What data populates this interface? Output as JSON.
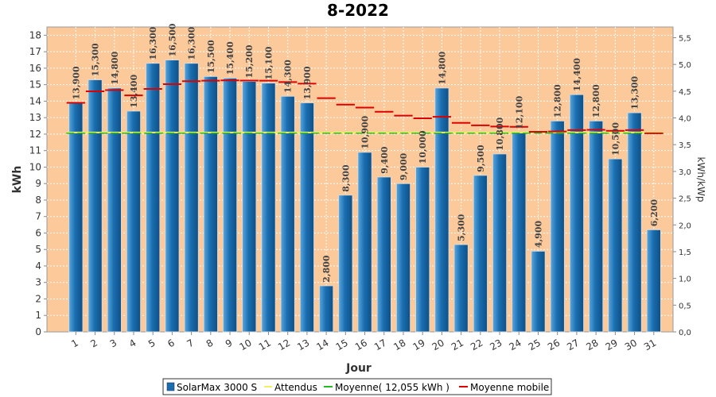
{
  "chart_data": {
    "type": "bar",
    "title": "8-2022",
    "xlabel": "Jour",
    "ylabel": "kWh",
    "y2label": "kWh/kWp",
    "ylim": [
      0,
      18.5
    ],
    "y2lim": [
      0,
      5.7
    ],
    "yticks": [
      "0",
      "1",
      "2",
      "3",
      "4",
      "5",
      "6",
      "7",
      "8",
      "9",
      "10",
      "11",
      "12",
      "13",
      "14",
      "15",
      "16",
      "17",
      "18"
    ],
    "y2ticks": [
      "0,0",
      "0,5",
      "1,0",
      "1,5",
      "2,0",
      "2,5",
      "3,0",
      "3,5",
      "4,0",
      "4,5",
      "5,0",
      "5,5"
    ],
    "categories": [
      "1",
      "2",
      "3",
      "4",
      "5",
      "6",
      "7",
      "8",
      "9",
      "10",
      "11",
      "12",
      "13",
      "14",
      "15",
      "16",
      "17",
      "18",
      "19",
      "20",
      "21",
      "22",
      "23",
      "24",
      "25",
      "26",
      "27",
      "28",
      "29",
      "30",
      "31"
    ],
    "series": [
      {
        "name": "SolarMax 3000 S",
        "values": [
          13.9,
          15.3,
          14.8,
          13.4,
          16.3,
          16.5,
          16.3,
          15.5,
          15.4,
          15.2,
          15.1,
          14.3,
          13.9,
          2.8,
          8.3,
          10.9,
          9.4,
          9.0,
          10.0,
          14.8,
          5.3,
          9.5,
          10.8,
          12.1,
          4.9,
          12.8,
          14.4,
          12.8,
          10.5,
          13.3,
          6.2
        ],
        "labels": [
          "13,900",
          "15,300",
          "14,800",
          "13,400",
          "16,300",
          "16,500",
          "16,300",
          "15,500",
          "15,400",
          "15,200",
          "15,100",
          "14,300",
          "13,900",
          "2,800",
          "8,300",
          "10,900",
          "9,400",
          "9,000",
          "10,000",
          "14,800",
          "5,300",
          "9,500",
          "10,800",
          "12,100",
          "4,900",
          "12,800",
          "14,400",
          "12,800",
          "10,500",
          "13,300",
          "6,200"
        ],
        "color": "#1a6eb0"
      },
      {
        "name": "Attendus",
        "values": [
          12.1,
          12.1,
          12.1,
          12.1,
          12.1,
          12.1,
          12.1,
          12.1,
          12.1,
          12.1,
          12.1,
          12.1,
          12.1,
          12.1,
          12.1,
          12.1,
          12.1,
          12.1,
          12.1,
          12.1,
          12.1,
          12.1,
          12.1,
          12.1,
          12.1,
          12.1,
          12.1,
          12.1,
          12.1,
          12.1,
          12.1
        ],
        "color": "#f0f060"
      },
      {
        "name": "Moyenne( 12,055 kWh )",
        "value": 12.055,
        "color": "#22bb22"
      },
      {
        "name": "Moyenne mobile",
        "values": [
          13.9,
          14.6,
          14.67,
          14.35,
          14.74,
          15.03,
          15.21,
          15.24,
          15.26,
          15.25,
          15.24,
          15.16,
          15.06,
          14.18,
          13.79,
          13.61,
          13.36,
          13.12,
          12.96,
          13.05,
          12.68,
          12.53,
          12.46,
          12.44,
          12.14,
          12.16,
          12.24,
          12.26,
          12.2,
          12.24,
          12.05
        ],
        "color": "#dd0000"
      }
    ],
    "plot_background": "#fcc99a",
    "grid": true,
    "legend_position": "bottom"
  }
}
